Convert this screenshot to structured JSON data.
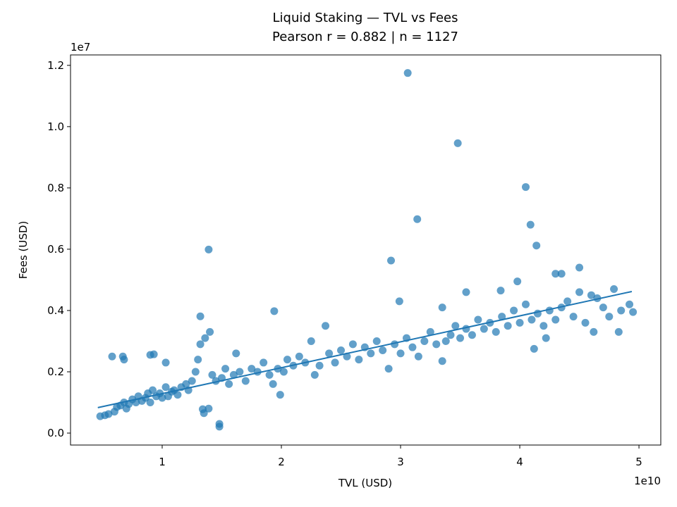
{
  "chart_data": {
    "type": "scatter",
    "title": "Liquid Staking — TVL vs Fees",
    "subtitle": "Pearson r = 0.882 | n = 1127",
    "x_label": "TVL (USD)",
    "y_label": "Fees (USD)",
    "x_offset_label": "1e10",
    "y_offset_label": "1e7",
    "xlim": [
      0.231,
      5.183
    ],
    "ylim": [
      -0.039,
      1.234
    ],
    "xticks": [
      1,
      2,
      3,
      4,
      5
    ],
    "yticks": [
      {
        "value": 0,
        "label": "0.0"
      },
      {
        "value": 0.2,
        "label": "0.2"
      },
      {
        "value": 0.4,
        "label": "0.4"
      },
      {
        "value": 0.6,
        "label": "0.6"
      },
      {
        "value": 0.8,
        "label": "0.8"
      },
      {
        "value": 1.0,
        "label": "1.0"
      },
      {
        "value": 1.2,
        "label": "1.2"
      }
    ],
    "series": [
      {
        "color": "#1f77b4",
        "x": [
          3.06,
          3.48,
          4.05,
          3.14,
          4.09,
          4.14,
          1.39,
          2.92,
          1.94,
          1.32,
          1.48,
          1.48,
          1.35,
          1.34,
          1.39,
          0.67,
          0.68,
          0.58,
          0.9,
          0.93,
          1.03,
          4.5,
          4.35,
          4.3,
          4.79,
          4.83,
          4.62,
          4.22,
          4.12,
          3.35,
          2.99,
          3.55,
          3.84,
          3.98,
          1.99,
          0.48,
          0.52,
          0.55,
          0.6,
          0.62,
          0.65,
          0.68,
          0.7,
          0.72,
          0.75,
          0.78,
          0.8,
          0.83,
          0.86,
          0.88,
          0.9,
          0.92,
          0.95,
          0.98,
          1.0,
          1.03,
          1.05,
          1.08,
          1.1,
          1.13,
          1.16,
          1.2,
          1.22,
          1.25,
          1.28,
          1.3,
          1.32,
          1.36,
          1.4,
          1.42,
          1.45,
          1.5,
          1.53,
          1.56,
          1.6,
          1.62,
          1.65,
          1.7,
          1.75,
          1.8,
          1.85,
          1.9,
          1.93,
          1.97,
          2.02,
          2.05,
          2.1,
          2.15,
          2.2,
          2.25,
          2.28,
          2.32,
          2.37,
          2.4,
          2.45,
          2.5,
          2.55,
          2.6,
          2.65,
          2.7,
          2.75,
          2.8,
          2.85,
          2.9,
          2.95,
          3.0,
          3.05,
          3.1,
          3.15,
          3.2,
          3.25,
          3.3,
          3.35,
          3.38,
          3.42,
          3.46,
          3.5,
          3.55,
          3.6,
          3.65,
          3.7,
          3.75,
          3.8,
          3.85,
          3.9,
          3.95,
          4.0,
          4.05,
          4.1,
          4.15,
          4.2,
          4.25,
          4.3,
          4.35,
          4.4,
          4.45,
          4.5,
          4.55,
          4.6,
          4.65,
          4.7,
          4.75,
          4.85,
          4.92,
          4.95
        ],
        "values": [
          1.175,
          0.946,
          0.803,
          0.698,
          0.68,
          0.612,
          0.599,
          0.563,
          0.398,
          0.381,
          0.021,
          0.03,
          0.065,
          0.078,
          0.08,
          0.25,
          0.24,
          0.25,
          0.255,
          0.257,
          0.23,
          0.54,
          0.52,
          0.52,
          0.47,
          0.33,
          0.33,
          0.31,
          0.275,
          0.235,
          0.43,
          0.46,
          0.465,
          0.495,
          0.125,
          0.055,
          0.058,
          0.062,
          0.07,
          0.085,
          0.09,
          0.1,
          0.08,
          0.095,
          0.11,
          0.1,
          0.12,
          0.105,
          0.115,
          0.13,
          0.1,
          0.14,
          0.12,
          0.13,
          0.115,
          0.15,
          0.12,
          0.135,
          0.14,
          0.125,
          0.15,
          0.16,
          0.14,
          0.17,
          0.2,
          0.24,
          0.29,
          0.31,
          0.33,
          0.19,
          0.17,
          0.18,
          0.21,
          0.16,
          0.19,
          0.26,
          0.2,
          0.17,
          0.21,
          0.2,
          0.23,
          0.19,
          0.16,
          0.21,
          0.2,
          0.24,
          0.22,
          0.25,
          0.23,
          0.3,
          0.19,
          0.22,
          0.35,
          0.26,
          0.23,
          0.27,
          0.25,
          0.29,
          0.24,
          0.28,
          0.26,
          0.3,
          0.27,
          0.21,
          0.29,
          0.26,
          0.31,
          0.28,
          0.25,
          0.3,
          0.33,
          0.29,
          0.41,
          0.3,
          0.32,
          0.35,
          0.31,
          0.34,
          0.32,
          0.37,
          0.34,
          0.36,
          0.33,
          0.38,
          0.35,
          0.4,
          0.36,
          0.42,
          0.37,
          0.39,
          0.35,
          0.4,
          0.37,
          0.41,
          0.43,
          0.38,
          0.46,
          0.36,
          0.45,
          0.44,
          0.41,
          0.38,
          0.4,
          0.42,
          0.395
        ]
      },
      {
        "color": "#1f77b4",
        "x": [
          0.46,
          4.94
        ],
        "values": [
          0.083,
          0.462
        ]
      }
    ]
  }
}
